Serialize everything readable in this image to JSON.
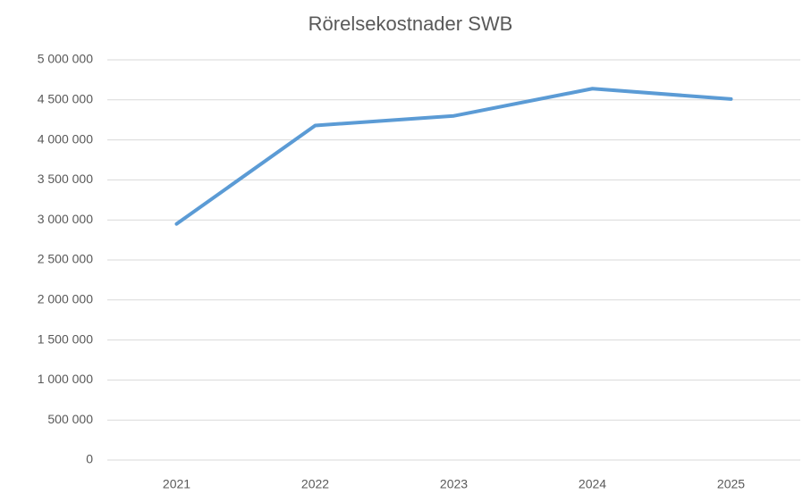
{
  "chart_data": {
    "type": "line",
    "title": "Rörelsekostnader SWB",
    "categories": [
      "2021",
      "2022",
      "2023",
      "2024",
      "2025"
    ],
    "series": [
      {
        "name": "Rörelsekostnader",
        "color": "#5b9bd5",
        "values": [
          2950000,
          4180000,
          4300000,
          4640000,
          4510000
        ]
      }
    ],
    "ylim": [
      0,
      5000000
    ],
    "yticks": [
      0,
      {
        "value": 500000,
        "label": "500 000"
      },
      {
        "value": 1000000,
        "label": "1 000 000"
      },
      {
        "value": 1500000,
        "label": "1 500 000"
      },
      {
        "value": 2000000,
        "label": "2 000 000"
      },
      {
        "value": 2500000,
        "label": "2 500 000"
      },
      {
        "value": 3000000,
        "label": "3 000 000"
      },
      {
        "value": 3500000,
        "label": "3 500 000"
      },
      {
        "value": 4000000,
        "label": "4 000 000"
      },
      {
        "value": 4500000,
        "label": "4 500 000"
      },
      {
        "value": 5000000,
        "label": "5 000 000"
      }
    ],
    "grid": true
  }
}
